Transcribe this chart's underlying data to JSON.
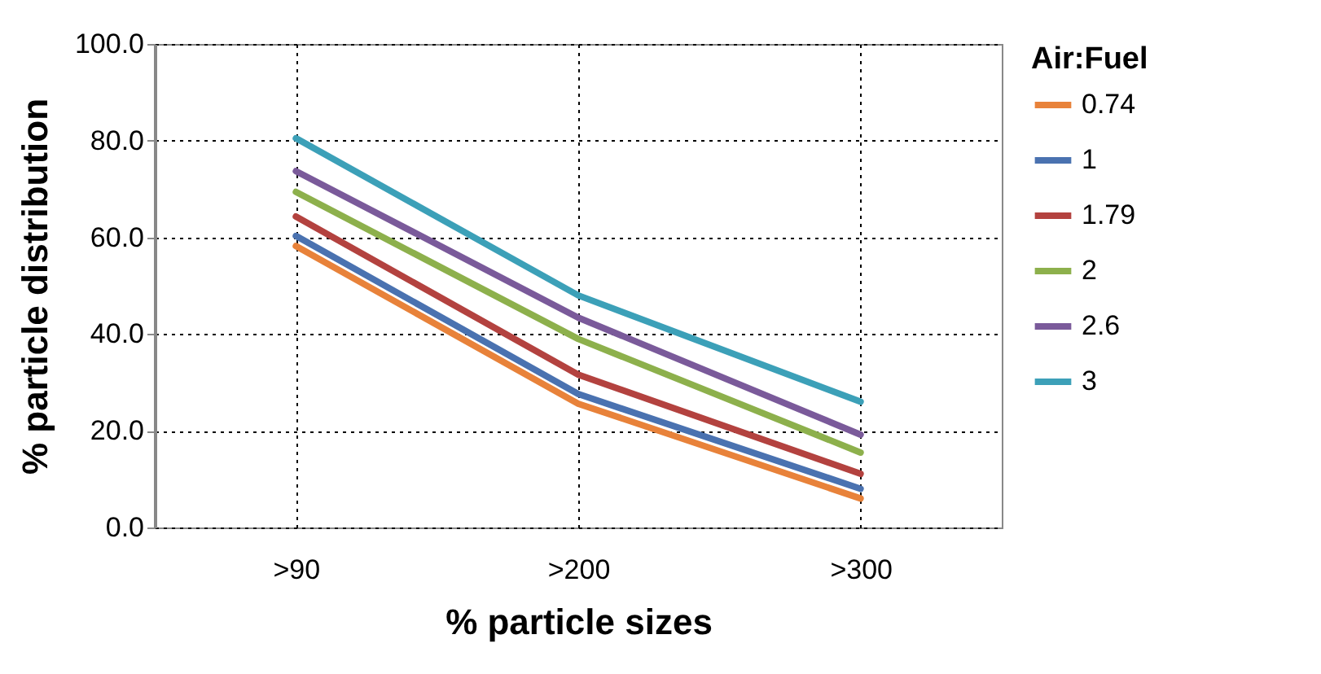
{
  "chart_data": {
    "type": "line",
    "xlabel": "% particle sizes",
    "ylabel": "% particle distribution",
    "legend_title": "Air:Fuel",
    "categories": [
      ">90",
      ">200",
      ">300"
    ],
    "series": [
      {
        "name": "0.74",
        "color": "#e8823a",
        "values": [
          58.2,
          25.6,
          6
        ]
      },
      {
        "name": "1",
        "color": "#4a72b0",
        "values": [
          60.3,
          27.6,
          8
        ]
      },
      {
        "name": "1.79",
        "color": "#b3423f",
        "values": [
          64.3,
          31.6,
          11.1
        ]
      },
      {
        "name": "2",
        "color": "#8db04c",
        "values": [
          69.4,
          39,
          15.5
        ]
      },
      {
        "name": "2.6",
        "color": "#7a5a9a",
        "values": [
          73.7,
          43.4,
          19.2
        ]
      },
      {
        "name": "3",
        "color": "#3ca0b8",
        "values": [
          80.5,
          48,
          26
        ]
      }
    ],
    "ylim": [
      0,
      100
    ],
    "yticks": [
      {
        "value": 0,
        "label": "0.0"
      },
      {
        "value": 20,
        "label": "20.0"
      },
      {
        "value": 40,
        "label": "40.0"
      },
      {
        "value": 60,
        "label": "60.0"
      },
      {
        "value": 80,
        "label": "80.0"
      },
      {
        "value": 100,
        "label": "100.0"
      }
    ],
    "grid": true,
    "legend": "right",
    "marker": "none",
    "line_style": "solid"
  }
}
